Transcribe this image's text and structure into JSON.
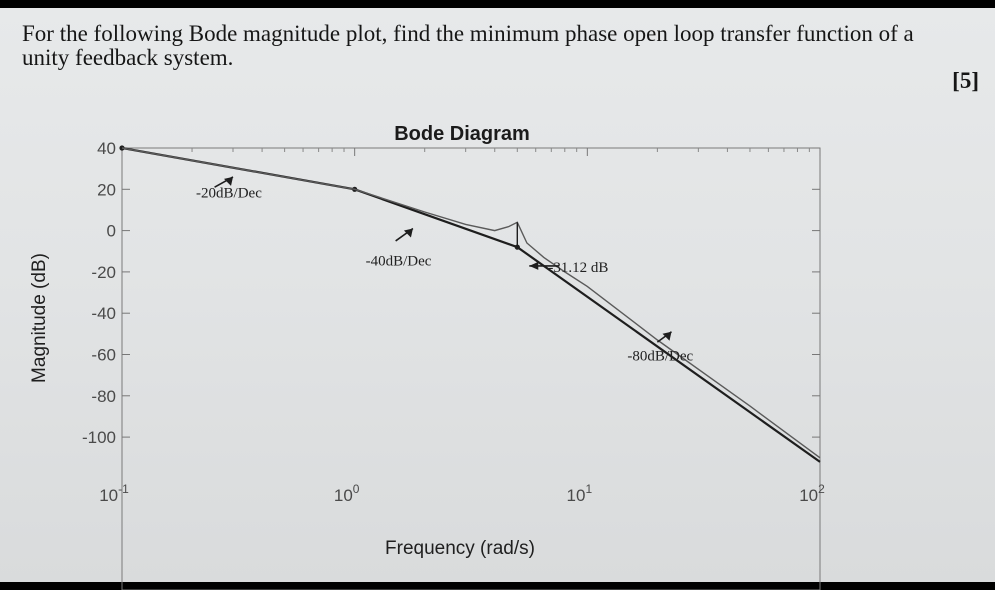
{
  "question": {
    "text": "For the following Bode magnitude plot, find the minimum phase open loop transfer function of a unity feedback system.",
    "marks": "[5]"
  },
  "chart_data": {
    "type": "line",
    "title": "Bode Diagram",
    "xlabel": "Frequency (rad/s)",
    "ylabel": "Magnitude (dB)",
    "xscale": "log",
    "xlim": [
      0.1,
      100
    ],
    "ylim": [
      -100,
      40
    ],
    "grid": false,
    "yticks": [
      40,
      20,
      0,
      -20,
      -40,
      -60,
      -80,
      -100
    ],
    "xticks": [
      {
        "value": 0.1,
        "base": "10",
        "exp": "-1"
      },
      {
        "value": 1,
        "base": "10",
        "exp": "0"
      },
      {
        "value": 10,
        "base": "10",
        "exp": "1"
      },
      {
        "value": 100,
        "base": "10",
        "exp": "2"
      }
    ],
    "series": [
      {
        "style": "asymptote",
        "x": [
          0.1,
          1,
          5,
          100
        ],
        "y": [
          40,
          20,
          -8,
          -112
        ]
      },
      {
        "style": "actual",
        "x": [
          0.1,
          1,
          2,
          3,
          4,
          4.6,
          5,
          5.5,
          6.5,
          8,
          10,
          20,
          50,
          100
        ],
        "y": [
          40,
          20,
          9,
          3,
          0,
          2,
          4,
          -6,
          -13,
          -20,
          -27,
          -53,
          -85,
          -110
        ]
      }
    ],
    "annotations": [
      {
        "text": "-20dB/Dec",
        "x": 0.28,
        "y": 16
      },
      {
        "text": "-40dB/Dec",
        "x": 1.5,
        "y": -17
      },
      {
        "text": "-31.12 dB",
        "x": 6.8,
        "y": -20
      },
      {
        "text": "-80dB/Dec",
        "x": 20,
        "y": -63
      }
    ]
  }
}
